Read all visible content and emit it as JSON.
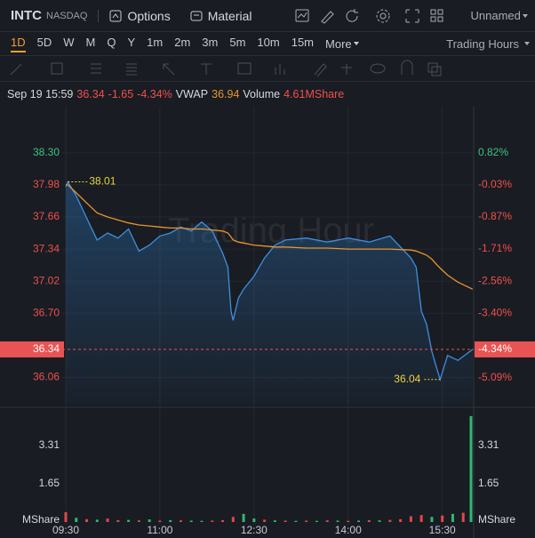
{
  "header": {
    "symbol": "INTC",
    "exchange": "NASDAQ",
    "options": "Options",
    "material": "Material",
    "layout": "Unnamed"
  },
  "periods": [
    "1D",
    "5D",
    "W",
    "M",
    "Q",
    "Y",
    "1m",
    "2m",
    "3m",
    "5m",
    "10m",
    "15m"
  ],
  "more": "More",
  "session": "Trading Hours",
  "info": {
    "time": "Sep 19 15:59",
    "price": 36.34,
    "change": -1.65,
    "change_pct": {
      "value": -4.34,
      "label": "-4.34%"
    },
    "vwap": 36.94,
    "volume_label": "Volume",
    "volume": "4.61MShare"
  },
  "chart_data": [
    {
      "type": "line",
      "watermark": "Trading Hour",
      "x": [
        "09:30",
        "09:32",
        "09:40",
        "09:50",
        "10:00",
        "10:10",
        "10:20",
        "10:30",
        "10:40",
        "10:50",
        "11:00",
        "11:10",
        "11:20",
        "11:30",
        "11:40",
        "11:50",
        "12:00",
        "12:05",
        "12:08",
        "12:10",
        "12:15",
        "12:20",
        "12:30",
        "12:40",
        "12:50",
        "13:00",
        "13:20",
        "13:40",
        "14:00",
        "14:20",
        "14:40",
        "15:00",
        "15:05",
        "15:10",
        "15:15",
        "15:20",
        "15:25",
        "15:28",
        "15:35",
        "15:45",
        "15:59"
      ],
      "series": [
        {
          "color": "#3d8fe0",
          "values": [
            37.96,
            38.01,
            37.87,
            37.65,
            37.43,
            37.5,
            37.45,
            37.54,
            37.32,
            37.38,
            37.47,
            37.5,
            37.56,
            37.52,
            37.61,
            37.52,
            37.3,
            37.16,
            36.72,
            36.63,
            36.85,
            36.94,
            37.07,
            37.25,
            37.38,
            37.43,
            37.45,
            37.41,
            37.45,
            37.41,
            37.47,
            37.25,
            37.16,
            36.72,
            36.59,
            36.32,
            36.14,
            36.04,
            36.28,
            36.23,
            36.34
          ]
        },
        {
          "name": "VWAP",
          "color": "#e8952e",
          "values": [
            37.98,
            37.98,
            37.9,
            37.8,
            37.7,
            37.66,
            37.63,
            37.6,
            37.58,
            37.57,
            37.56,
            37.55,
            37.55,
            37.54,
            37.54,
            37.53,
            37.52,
            37.5,
            37.46,
            37.43,
            37.41,
            37.4,
            37.38,
            37.37,
            37.36,
            37.36,
            37.35,
            37.35,
            37.34,
            37.34,
            37.34,
            37.33,
            37.32,
            37.3,
            37.28,
            37.24,
            37.18,
            37.15,
            37.08,
            37.01,
            36.94
          ]
        }
      ],
      "xlim": [
        "09:30",
        "16:00"
      ],
      "ylim": [
        35.79,
        38.67
      ],
      "yticks": [
        {
          "value": 38.3,
          "label": "38.30"
        },
        37.98,
        37.66,
        37.34,
        37.02,
        {
          "value": 36.7,
          "label": "36.70"
        },
        36.06
      ],
      "y2lim": [
        -5.79,
        1.79
      ],
      "y2ticks": [
        {
          "value": 0.82,
          "label": "0.82%"
        },
        {
          "value": -0.03,
          "label": "-0.03%"
        },
        {
          "value": -0.87,
          "label": "-0.87%"
        },
        {
          "value": -1.71,
          "label": "-1.71%"
        },
        {
          "value": -2.56,
          "label": "-2.56%"
        },
        {
          "value": -3.4,
          "label": "-3.40%"
        },
        {
          "value": -5.09,
          "label": "-5.09%"
        }
      ],
      "annotations": [
        {
          "x": "09:32",
          "y": 38.01
        },
        {
          "x": "15:28",
          "y": 36.04
        }
      ],
      "last": 36.34,
      "last_pct": {
        "value": -4.34,
        "label": "-4.34%"
      },
      "grid": true
    },
    {
      "type": "bar",
      "y_label": "MShare",
      "x": [
        "09:30",
        "09:40",
        "09:50",
        "10:00",
        "10:10",
        "10:20",
        "10:30",
        "10:40",
        "10:50",
        "11:00",
        "11:10",
        "11:20",
        "11:30",
        "11:40",
        "11:50",
        "12:00",
        "12:10",
        "12:20",
        "12:30",
        "12:40",
        "12:50",
        "13:00",
        "13:10",
        "13:20",
        "13:30",
        "13:40",
        "13:50",
        "14:00",
        "14:10",
        "14:20",
        "14:30",
        "14:40",
        "14:50",
        "15:00",
        "15:10",
        "15:20",
        "15:30",
        "15:40",
        "15:50",
        "15:59"
      ],
      "values": [
        0.42,
        0.18,
        0.12,
        0.1,
        0.15,
        0.08,
        0.09,
        0.07,
        0.11,
        0.06,
        0.08,
        0.07,
        0.06,
        0.05,
        0.06,
        0.08,
        0.22,
        0.35,
        0.15,
        0.1,
        0.07,
        0.06,
        0.05,
        0.06,
        0.05,
        0.07,
        0.06,
        0.05,
        0.06,
        0.08,
        0.07,
        0.09,
        0.12,
        0.25,
        0.3,
        0.22,
        0.28,
        0.35,
        0.4,
        4.57
      ],
      "colors": [
        "#e04848",
        "#2eb872",
        "#e04848",
        "#2eb872",
        "#e04848",
        "#e04848",
        "#2eb872",
        "#e04848",
        "#2eb872",
        "#e04848",
        "#2eb872",
        "#e04848",
        "#2eb872",
        "#2eb872",
        "#e04848",
        "#e04848",
        "#e04848",
        "#2eb872",
        "#2eb872",
        "#e04848",
        "#2eb872",
        "#e04848",
        "#2eb872",
        "#e04848",
        "#2eb872",
        "#e04848",
        "#2eb872",
        "#e04848",
        "#2eb872",
        "#e04848",
        "#2eb872",
        "#e04848",
        "#e04848",
        "#e04848",
        "#e04848",
        "#2eb872",
        "#e04848",
        "#2eb872",
        "#e04848",
        "#2eb872"
      ],
      "xlim": [
        "09:30",
        "16:00"
      ],
      "ylim": [
        0,
        4.68
      ],
      "yticks": [
        1.65,
        3.31
      ],
      "xticks": [
        "09:30",
        "11:00",
        "12:30",
        "14:00",
        "15:30"
      ]
    }
  ]
}
